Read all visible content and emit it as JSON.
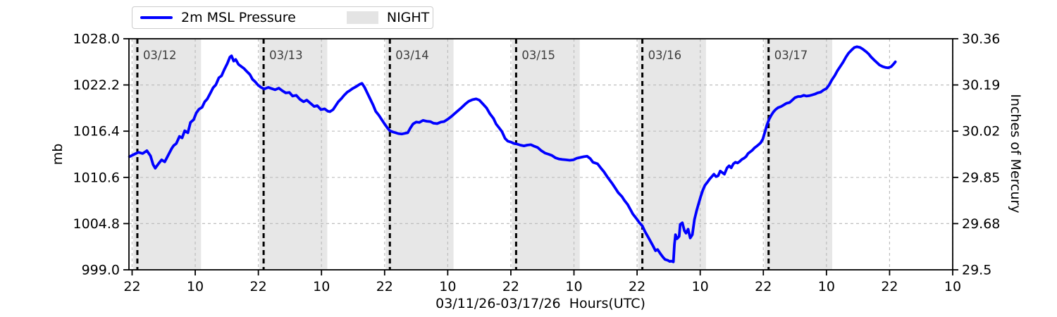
{
  "page": {
    "background": "#ffffff"
  },
  "legend": {
    "pressure_label": "2m MSL Pressure",
    "night_label": "NIGHT"
  },
  "axes": {
    "left_label": "mb",
    "right_label": "Inches of Mercury",
    "bottom_label": "03/11/26-03/17/26  Hours(UTC)",
    "left_tick_labels": [
      "1028.0",
      "1022.2",
      "1016.4",
      "1010.6",
      "1004.8",
      "999.0"
    ],
    "right_tick_labels": [
      "30.36",
      "30.19",
      "30.02",
      "29.85",
      "29.68",
      "29.5"
    ],
    "bottom_tick_labels": [
      "22",
      "10",
      "22",
      "10",
      "22",
      "10",
      "22",
      "10",
      "22",
      "10",
      "22",
      "10",
      "22",
      "10"
    ],
    "bottom_tick_hours": [
      22,
      34,
      46,
      58,
      70,
      82,
      94,
      106,
      118,
      130,
      142,
      154,
      166,
      178
    ]
  },
  "colors": {
    "line": "#0000ff",
    "night_band": "#e7e7e7",
    "legend_patch": "#e4e4e4",
    "grid": "#bdbdbd",
    "date_line": "#000000",
    "date_label": "#3d3d3d",
    "axis": "#000000"
  },
  "chart_data": {
    "type": "line",
    "title": "",
    "xlabel": "03/11/26-03/17/26  Hours(UTC)",
    "ylabel_left": "mb",
    "ylabel_right": "Inches of Mercury",
    "legend_position": "top-left",
    "grid": true,
    "x_axis": {
      "unit": "hours since 03/11/26 00:00 UTC",
      "domain": [
        21.4,
        178.0
      ]
    },
    "y_axis": {
      "unit": "mb",
      "domain": [
        999.0,
        1028.0
      ],
      "ticks": [
        1028.0,
        1022.2,
        1016.4,
        1010.6,
        1004.8,
        999.0
      ]
    },
    "y_axis_right": {
      "unit": "inches of mercury",
      "ticks": [
        30.36,
        30.19,
        30.02,
        29.85,
        29.68,
        29.5
      ],
      "conversion": "inHg = mb * 0.02953"
    },
    "night_bands_hours": [
      [
        22.2,
        35.1
      ],
      [
        46.2,
        59.1
      ],
      [
        70.2,
        83.1
      ],
      [
        94.2,
        107.1
      ],
      [
        118.2,
        131.1
      ],
      [
        142.2,
        155.1
      ]
    ],
    "date_lines": [
      {
        "hour": 23.0,
        "label": "03/12"
      },
      {
        "hour": 47.0,
        "label": "03/13"
      },
      {
        "hour": 71.0,
        "label": "03/14"
      },
      {
        "hour": 95.0,
        "label": "03/15"
      },
      {
        "hour": 119.0,
        "label": "03/16"
      },
      {
        "hour": 143.0,
        "label": "03/17"
      }
    ],
    "series": [
      {
        "name": "2m MSL Pressure",
        "color": "#0000ff",
        "points": [
          [
            21.5,
            1013.2
          ],
          [
            22.4,
            1013.5
          ],
          [
            23.2,
            1013.75
          ],
          [
            24.0,
            1013.6
          ],
          [
            24.8,
            1013.95
          ],
          [
            25.5,
            1013.3
          ],
          [
            26.0,
            1012.2
          ],
          [
            26.4,
            1011.75
          ],
          [
            27.0,
            1012.3
          ],
          [
            27.6,
            1012.8
          ],
          [
            28.2,
            1012.55
          ],
          [
            28.8,
            1013.3
          ],
          [
            29.5,
            1014.2
          ],
          [
            29.9,
            1014.6
          ],
          [
            30.4,
            1014.85
          ],
          [
            31.0,
            1015.75
          ],
          [
            31.5,
            1015.55
          ],
          [
            32.0,
            1016.45
          ],
          [
            32.6,
            1016.2
          ],
          [
            33.1,
            1017.5
          ],
          [
            33.7,
            1017.85
          ],
          [
            34.2,
            1018.7
          ],
          [
            34.7,
            1019.15
          ],
          [
            35.3,
            1019.4
          ],
          [
            35.8,
            1020.1
          ],
          [
            36.3,
            1020.45
          ],
          [
            36.9,
            1021.2
          ],
          [
            37.4,
            1021.85
          ],
          [
            37.9,
            1022.2
          ],
          [
            38.5,
            1023.1
          ],
          [
            39.0,
            1023.35
          ],
          [
            39.5,
            1024.1
          ],
          [
            40.1,
            1024.9
          ],
          [
            40.6,
            1025.7
          ],
          [
            40.9,
            1025.85
          ],
          [
            41.3,
            1025.2
          ],
          [
            41.7,
            1025.4
          ],
          [
            42.2,
            1024.8
          ],
          [
            42.8,
            1024.5
          ],
          [
            43.3,
            1024.25
          ],
          [
            43.8,
            1023.9
          ],
          [
            44.4,
            1023.5
          ],
          [
            44.9,
            1022.9
          ],
          [
            45.4,
            1022.6
          ],
          [
            46.0,
            1022.15
          ],
          [
            46.5,
            1021.9
          ],
          [
            47.1,
            1021.7
          ],
          [
            47.9,
            1021.9
          ],
          [
            48.5,
            1021.75
          ],
          [
            49.2,
            1021.6
          ],
          [
            49.9,
            1021.8
          ],
          [
            50.5,
            1021.5
          ],
          [
            51.2,
            1021.2
          ],
          [
            51.9,
            1021.25
          ],
          [
            52.5,
            1020.8
          ],
          [
            53.2,
            1020.9
          ],
          [
            53.9,
            1020.4
          ],
          [
            54.6,
            1020.1
          ],
          [
            55.2,
            1020.3
          ],
          [
            55.9,
            1019.9
          ],
          [
            56.6,
            1019.5
          ],
          [
            57.2,
            1019.6
          ],
          [
            57.9,
            1019.1
          ],
          [
            58.6,
            1019.2
          ],
          [
            59.2,
            1018.9
          ],
          [
            59.6,
            1018.85
          ],
          [
            60.2,
            1019.1
          ],
          [
            60.7,
            1019.6
          ],
          [
            61.2,
            1020.1
          ],
          [
            61.8,
            1020.5
          ],
          [
            62.3,
            1020.9
          ],
          [
            62.9,
            1021.3
          ],
          [
            63.4,
            1021.5
          ],
          [
            63.9,
            1021.75
          ],
          [
            64.6,
            1022.0
          ],
          [
            65.3,
            1022.3
          ],
          [
            65.7,
            1022.4
          ],
          [
            66.2,
            1021.9
          ],
          [
            66.7,
            1021.2
          ],
          [
            67.3,
            1020.4
          ],
          [
            67.8,
            1019.7
          ],
          [
            68.3,
            1018.9
          ],
          [
            68.9,
            1018.4
          ],
          [
            69.4,
            1017.9
          ],
          [
            70.0,
            1017.3
          ],
          [
            70.5,
            1016.85
          ],
          [
            71.0,
            1016.45
          ],
          [
            71.6,
            1016.3
          ],
          [
            72.1,
            1016.2
          ],
          [
            72.6,
            1016.1
          ],
          [
            73.3,
            1016.05
          ],
          [
            74.0,
            1016.15
          ],
          [
            74.4,
            1016.2
          ],
          [
            74.9,
            1016.8
          ],
          [
            75.4,
            1017.3
          ],
          [
            76.0,
            1017.55
          ],
          [
            76.6,
            1017.5
          ],
          [
            77.3,
            1017.75
          ],
          [
            78.0,
            1017.65
          ],
          [
            78.7,
            1017.6
          ],
          [
            79.3,
            1017.4
          ],
          [
            80.0,
            1017.35
          ],
          [
            80.7,
            1017.55
          ],
          [
            81.3,
            1017.6
          ],
          [
            82.0,
            1017.9
          ],
          [
            82.7,
            1018.25
          ],
          [
            83.3,
            1018.6
          ],
          [
            84.0,
            1019.0
          ],
          [
            84.7,
            1019.4
          ],
          [
            85.4,
            1019.85
          ],
          [
            86.0,
            1020.15
          ],
          [
            86.7,
            1020.35
          ],
          [
            87.4,
            1020.45
          ],
          [
            88.0,
            1020.3
          ],
          [
            88.7,
            1019.8
          ],
          [
            89.4,
            1019.3
          ],
          [
            90.0,
            1018.6
          ],
          [
            90.7,
            1018.0
          ],
          [
            91.2,
            1017.3
          ],
          [
            91.8,
            1016.8
          ],
          [
            92.3,
            1016.35
          ],
          [
            92.9,
            1015.5
          ],
          [
            93.4,
            1015.15
          ],
          [
            94.1,
            1015.0
          ],
          [
            94.6,
            1014.85
          ],
          [
            95.1,
            1014.8
          ],
          [
            95.8,
            1014.65
          ],
          [
            96.5,
            1014.55
          ],
          [
            97.1,
            1014.65
          ],
          [
            97.8,
            1014.7
          ],
          [
            98.5,
            1014.5
          ],
          [
            99.1,
            1014.35
          ],
          [
            99.8,
            1013.95
          ],
          [
            100.5,
            1013.65
          ],
          [
            101.2,
            1013.5
          ],
          [
            101.8,
            1013.35
          ],
          [
            102.5,
            1013.05
          ],
          [
            103.2,
            1012.9
          ],
          [
            103.8,
            1012.85
          ],
          [
            104.5,
            1012.8
          ],
          [
            105.2,
            1012.75
          ],
          [
            105.9,
            1012.8
          ],
          [
            106.5,
            1013.0
          ],
          [
            107.2,
            1013.1
          ],
          [
            107.9,
            1013.2
          ],
          [
            108.5,
            1013.25
          ],
          [
            109.1,
            1012.95
          ],
          [
            109.6,
            1012.5
          ],
          [
            110.5,
            1012.3
          ],
          [
            111.2,
            1011.7
          ],
          [
            111.7,
            1011.3
          ],
          [
            112.3,
            1010.7
          ],
          [
            112.8,
            1010.25
          ],
          [
            113.3,
            1009.8
          ],
          [
            113.9,
            1009.2
          ],
          [
            114.4,
            1008.7
          ],
          [
            115.1,
            1008.2
          ],
          [
            115.6,
            1007.7
          ],
          [
            116.2,
            1007.2
          ],
          [
            116.7,
            1006.6
          ],
          [
            117.2,
            1006.0
          ],
          [
            117.9,
            1005.4
          ],
          [
            118.4,
            1004.95
          ],
          [
            119.0,
            1004.5
          ],
          [
            119.5,
            1003.8
          ],
          [
            120.2,
            1003.0
          ],
          [
            120.9,
            1002.15
          ],
          [
            121.5,
            1001.4
          ],
          [
            121.9,
            1001.55
          ],
          [
            122.5,
            1000.95
          ],
          [
            122.9,
            1000.6
          ],
          [
            123.3,
            1000.3
          ],
          [
            123.8,
            1000.2
          ],
          [
            124.2,
            1000.05
          ],
          [
            124.5,
            1000.1
          ],
          [
            124.9,
            1000.0
          ],
          [
            125.1,
            1002.2
          ],
          [
            125.3,
            1003.4
          ],
          [
            125.6,
            1002.9
          ],
          [
            126.0,
            1003.2
          ],
          [
            126.2,
            1004.7
          ],
          [
            126.6,
            1004.9
          ],
          [
            127.0,
            1003.9
          ],
          [
            127.3,
            1003.6
          ],
          [
            127.7,
            1004.1
          ],
          [
            128.1,
            1003.0
          ],
          [
            128.5,
            1003.4
          ],
          [
            128.9,
            1005.3
          ],
          [
            129.3,
            1006.4
          ],
          [
            129.7,
            1007.3
          ],
          [
            130.1,
            1008.2
          ],
          [
            130.5,
            1009.0
          ],
          [
            130.9,
            1009.6
          ],
          [
            131.3,
            1009.95
          ],
          [
            131.8,
            1010.4
          ],
          [
            132.2,
            1010.7
          ],
          [
            132.6,
            1011.0
          ],
          [
            133.0,
            1010.7
          ],
          [
            133.4,
            1010.8
          ],
          [
            133.8,
            1011.4
          ],
          [
            134.2,
            1011.2
          ],
          [
            134.6,
            1011.0
          ],
          [
            135.1,
            1011.8
          ],
          [
            135.5,
            1012.05
          ],
          [
            135.9,
            1011.8
          ],
          [
            136.3,
            1012.3
          ],
          [
            136.7,
            1012.5
          ],
          [
            137.1,
            1012.4
          ],
          [
            137.5,
            1012.6
          ],
          [
            137.9,
            1012.85
          ],
          [
            138.3,
            1013.0
          ],
          [
            138.7,
            1013.2
          ],
          [
            139.1,
            1013.6
          ],
          [
            139.5,
            1013.8
          ],
          [
            139.9,
            1014.0
          ],
          [
            140.3,
            1014.3
          ],
          [
            140.7,
            1014.5
          ],
          [
            141.1,
            1014.7
          ],
          [
            141.5,
            1014.95
          ],
          [
            141.9,
            1015.4
          ],
          [
            142.3,
            1016.3
          ],
          [
            142.7,
            1017.2
          ],
          [
            143.1,
            1017.9
          ],
          [
            143.5,
            1018.4
          ],
          [
            143.9,
            1018.8
          ],
          [
            144.3,
            1019.1
          ],
          [
            144.8,
            1019.35
          ],
          [
            145.4,
            1019.5
          ],
          [
            145.9,
            1019.7
          ],
          [
            146.4,
            1019.9
          ],
          [
            147.0,
            1020.0
          ],
          [
            147.5,
            1020.3
          ],
          [
            148.0,
            1020.6
          ],
          [
            148.6,
            1020.75
          ],
          [
            149.1,
            1020.75
          ],
          [
            149.7,
            1020.9
          ],
          [
            150.2,
            1020.8
          ],
          [
            150.7,
            1020.85
          ],
          [
            151.3,
            1020.95
          ],
          [
            151.8,
            1021.05
          ],
          [
            152.3,
            1021.2
          ],
          [
            152.9,
            1021.3
          ],
          [
            153.4,
            1021.55
          ],
          [
            154.0,
            1021.75
          ],
          [
            154.5,
            1022.2
          ],
          [
            155.0,
            1022.8
          ],
          [
            155.6,
            1023.4
          ],
          [
            156.1,
            1024.0
          ],
          [
            156.6,
            1024.5
          ],
          [
            157.2,
            1025.1
          ],
          [
            157.7,
            1025.7
          ],
          [
            158.2,
            1026.2
          ],
          [
            158.8,
            1026.6
          ],
          [
            159.3,
            1026.9
          ],
          [
            159.8,
            1027.0
          ],
          [
            160.4,
            1026.9
          ],
          [
            160.9,
            1026.7
          ],
          [
            161.5,
            1026.4
          ],
          [
            162.0,
            1026.1
          ],
          [
            162.5,
            1025.7
          ],
          [
            163.1,
            1025.3
          ],
          [
            163.6,
            1025.0
          ],
          [
            164.1,
            1024.7
          ],
          [
            164.7,
            1024.5
          ],
          [
            165.2,
            1024.4
          ],
          [
            165.7,
            1024.35
          ],
          [
            166.3,
            1024.5
          ],
          [
            166.8,
            1024.85
          ],
          [
            167.1,
            1025.1
          ]
        ]
      }
    ]
  }
}
